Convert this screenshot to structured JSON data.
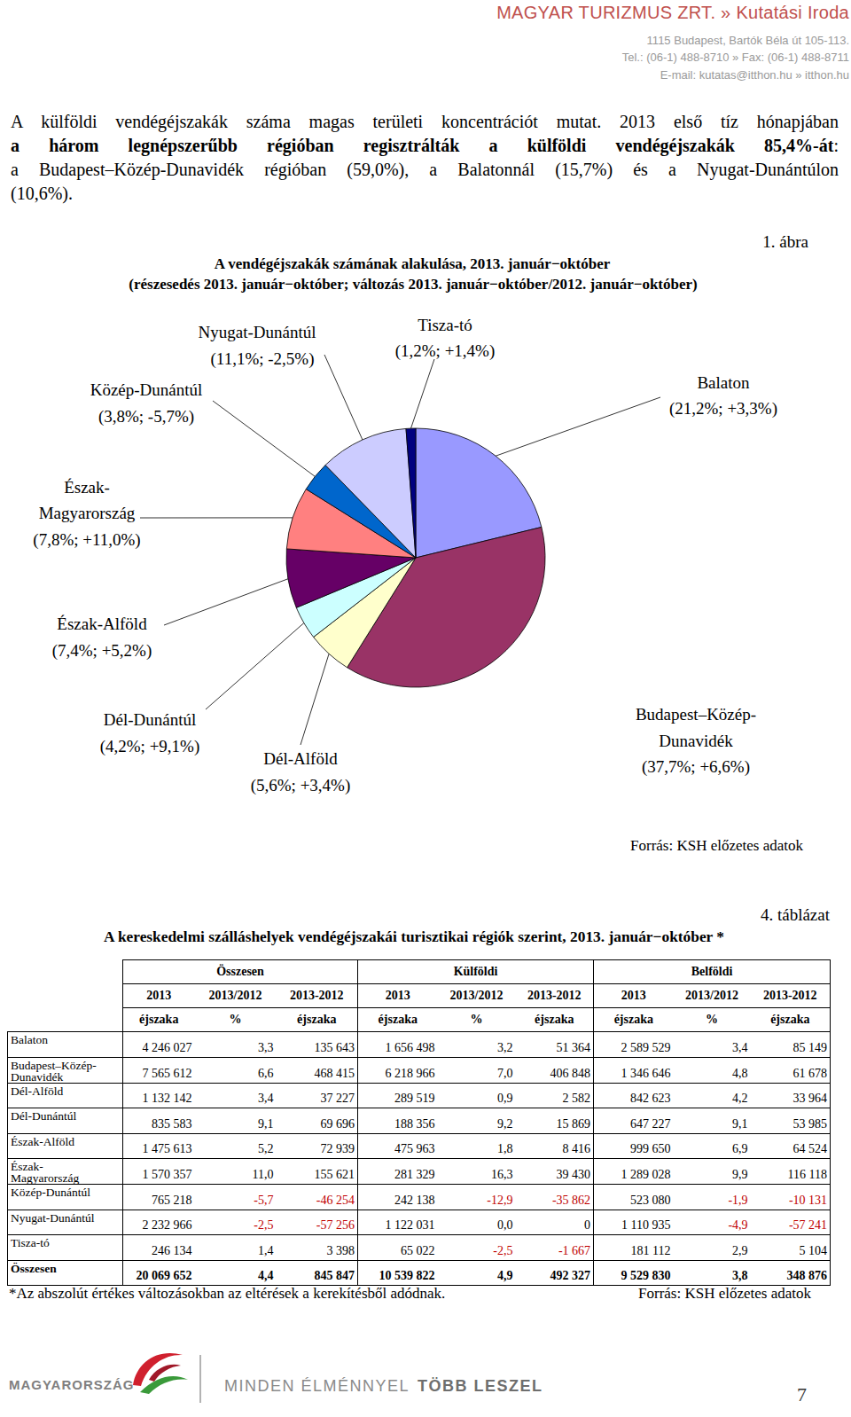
{
  "header": {
    "title": "MAGYAR TURIZMUS ZRT. » Kutatási Iroda",
    "address_lines": [
      "1115 Budapest, Bartók Béla út 105-113.",
      "Tel.: (06-1) 488-8710 » Fax: (06-1) 488-8711",
      "E-mail: kutatas@itthon.hu » itthon.hu"
    ]
  },
  "paragraph": {
    "lines": [
      [
        {
          "text": "A külföldi vendégéjszakák száma magas területi koncentrációt mutat. 2013 első tíz hónapjában",
          "bold": false
        }
      ],
      [
        {
          "text": "a három legnépszerűbb régióban regisztrálták a külföldi vendégéjszakák 85,4%-át",
          "bold": true
        },
        {
          "text": ":",
          "bold": false
        }
      ],
      [
        {
          "text": "a Budapest–Közép-Dunavidék régióban (59,0%), a Balatonnál (15,7%) és a Nyugat-Dunántúlon",
          "bold": false
        }
      ],
      [
        {
          "text": "(10,6%).",
          "bold": false
        }
      ]
    ]
  },
  "figure": {
    "number": "1. ábra",
    "source": "Forrás: KSH előzetes adatok"
  },
  "chart_data": {
    "type": "pie",
    "title": "A vendégéjszakák számának alakulása, 2013. január−október",
    "subtitle": "(részesedés 2013. január−október; változás 2013. január−október/2012. január−október)",
    "categories": [
      "Balaton",
      "Budapest–Közép-\nDunavidék",
      "Dél-Alföld",
      "Dél-Dunántúl",
      "Észak-Alföld",
      "Észak-\nMagyarország",
      "Közép-Dunántúl",
      "Nyugat-Dunántúl",
      "Tisza-tó"
    ],
    "values": [
      21.2,
      37.7,
      5.6,
      4.2,
      7.4,
      7.8,
      3.8,
      11.1,
      1.2
    ],
    "value_labels": [
      "(21,2%; +3,3%)",
      "(37,7%; +6,6%)",
      "(5,6%; +3,4%)",
      "(4,2%; +9,1%)",
      "(7,4%; +5,2%)",
      "(7,8%; +11,0%)",
      "(3,8%; -5,7%)",
      "(11,1%; -2,5%)",
      "(1,2%; +1,4%)"
    ],
    "colors": [
      "#9999ff",
      "#993366",
      "#ffffcc",
      "#ccffff",
      "#660066",
      "#ff8080",
      "#0066cc",
      "#ccccff",
      "#000080"
    ],
    "data_labels": true
  },
  "table": {
    "number": "4. táblázat",
    "title": "A kereskedelmi szálláshelyek vendégéjszakái turisztikai régiók szerint, 2013. január−október *",
    "group_headers": [
      "Összesen",
      "Külföldi",
      "Belföldi"
    ],
    "sub_headers": [
      "2013",
      "2013/2012",
      "2013-2012",
      "2013",
      "2013/2012",
      "2013-2012",
      "2013",
      "2013/2012",
      "2013-2012"
    ],
    "units": [
      "éjszaka",
      "%",
      "éjszaka",
      "éjszaka",
      "%",
      "éjszaka",
      "éjszaka",
      "%",
      "éjszaka"
    ],
    "rows": [
      {
        "label": "Balaton",
        "cells": [
          "4 246 027",
          "3,3",
          "135 643",
          "1 656 498",
          "3,2",
          "51 364",
          "2 589 529",
          "3,4",
          "85 149"
        ]
      },
      {
        "label": "Budapest–Közép-\nDunavidék",
        "cells": [
          "7 565 612",
          "6,6",
          "468 415",
          "6 218 966",
          "7,0",
          "406 848",
          "1 346 646",
          "4,8",
          "61 678"
        ]
      },
      {
        "label": "Dél-Alföld",
        "cells": [
          "1 132 142",
          "3,4",
          "37 227",
          "289 519",
          "0,9",
          "2 582",
          "842 623",
          "4,2",
          "33 964"
        ]
      },
      {
        "label": "Dél-Dunántúl",
        "cells": [
          "835 583",
          "9,1",
          "69 696",
          "188 356",
          "9,2",
          "15 869",
          "647 227",
          "9,1",
          "53 985"
        ]
      },
      {
        "label": "Észak-Alföld",
        "cells": [
          "1 475 613",
          "5,2",
          "72 939",
          "475 963",
          "1,8",
          "8 416",
          "999 650",
          "6,9",
          "64 524"
        ]
      },
      {
        "label": "Észak-\nMagyarország",
        "cells": [
          "1 570 357",
          "11,0",
          "155 621",
          "281 329",
          "16,3",
          "39 430",
          "1 289 028",
          "9,9",
          "116 118"
        ]
      },
      {
        "label": "Közép-Dunántúl",
        "cells": [
          "765 218",
          "-5,7",
          "-46 254",
          "242 138",
          "-12,9",
          "-35 862",
          "523 080",
          "-1,9",
          "-10 131"
        ]
      },
      {
        "label": "Nyugat-Dunántúl",
        "cells": [
          "2 232 966",
          "-2,5",
          "-57 256",
          "1 122 031",
          "0,0",
          "0",
          "1 110 935",
          "-4,9",
          "-57 241"
        ]
      },
      {
        "label": "Tisza-tó",
        "cells": [
          "246 134",
          "1,4",
          "3 398",
          "65 022",
          "-2,5",
          "-1 667",
          "181 112",
          "2,9",
          "5 104"
        ]
      }
    ],
    "total_row": {
      "label": "Összesen",
      "cells": [
        "20 069 652",
        "4,4",
        "845 847",
        "10 539 822",
        "4,9",
        "492 327",
        "9 529 830",
        "3,8",
        "348 876"
      ]
    },
    "footnote": "*Az abszolút értékes változásokban az eltérések a kerekítésből adódnak.",
    "source": "Forrás: KSH előzetes adatok"
  },
  "footer": {
    "brand": "MAGYARORSZÁG",
    "slogan_normal": "MINDEN ÉLMÉNNYEL",
    "slogan_bold": "TÖBB LESZEL",
    "page_number": "7"
  }
}
